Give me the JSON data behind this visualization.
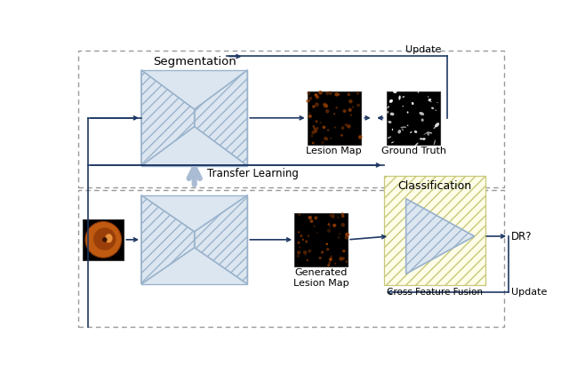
{
  "bg_color": "#ffffff",
  "arrow_color": "#1f3864",
  "hourglass_fill": "#dce6f0",
  "hourglass_outline": "#9ab3cc",
  "seg_label": "Segmentation",
  "transfer_label": "Transfer Learning",
  "class_label": "Classification",
  "lesion_label": "Lesion Map",
  "gt_label": "Ground Truth",
  "gen_lesion_label": "Generated\nLesion Map",
  "cff_label": "Cross Feature Fusion",
  "dr_label": "DR?",
  "update_label_top": "Update",
  "update_label_bot": "Update",
  "outer_border_color": "#999999",
  "transfer_arrow_color": "#aabcd4",
  "class_box_fill": "#fefde8",
  "class_box_border": "#c8c87a",
  "class_box_hatch_color": "#e8e8b0"
}
